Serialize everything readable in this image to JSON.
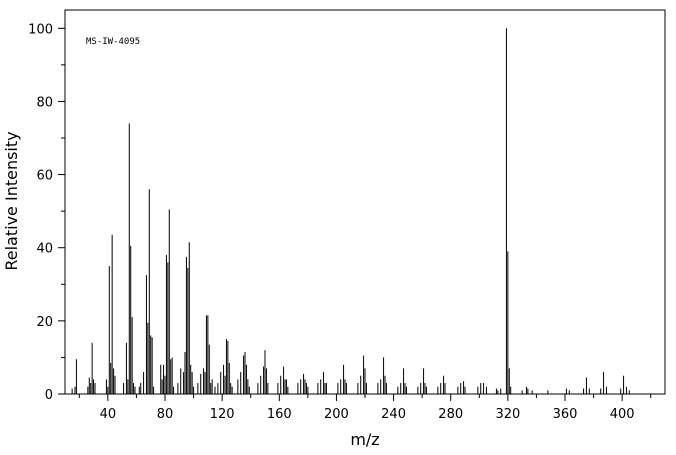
{
  "chart_data": {
    "type": "bar",
    "annotation": "MS-IW-4095",
    "xlabel": "m/z",
    "ylabel": "Relative Intensity",
    "xlim": [
      10,
      430
    ],
    "ylim": [
      0,
      105
    ],
    "x_ticks": [
      40,
      80,
      120,
      160,
      200,
      240,
      280,
      320,
      360,
      400
    ],
    "y_ticks": [
      0,
      20,
      40,
      60,
      80,
      100
    ],
    "series": [
      {
        "peaks": [
          [
            15,
            1.5
          ],
          [
            17,
            2
          ],
          [
            18,
            9.5
          ],
          [
            26,
            2
          ],
          [
            27,
            4.5
          ],
          [
            28,
            3
          ],
          [
            29,
            14
          ],
          [
            30,
            4
          ],
          [
            31,
            3
          ],
          [
            39,
            4
          ],
          [
            40,
            2
          ],
          [
            41,
            35
          ],
          [
            42,
            8.5
          ],
          [
            43,
            43.5
          ],
          [
            44,
            7
          ],
          [
            45,
            5
          ],
          [
            51,
            3
          ],
          [
            53,
            14
          ],
          [
            54,
            4
          ],
          [
            55,
            74
          ],
          [
            56,
            40.5
          ],
          [
            57,
            21
          ],
          [
            58,
            3
          ],
          [
            59,
            2
          ],
          [
            62,
            2
          ],
          [
            63,
            3
          ],
          [
            65,
            6
          ],
          [
            67,
            32.5
          ],
          [
            68,
            19.5
          ],
          [
            69,
            56
          ],
          [
            70,
            16
          ],
          [
            71,
            15.5
          ],
          [
            72,
            2
          ],
          [
            77,
            8
          ],
          [
            78,
            4
          ],
          [
            79,
            8
          ],
          [
            80,
            5
          ],
          [
            81,
            38
          ],
          [
            82,
            36
          ],
          [
            83,
            50.5
          ],
          [
            84,
            9.5
          ],
          [
            85,
            10
          ],
          [
            86,
            2
          ],
          [
            89,
            3
          ],
          [
            91,
            7
          ],
          [
            93,
            6
          ],
          [
            94,
            11.5
          ],
          [
            95,
            37.5
          ],
          [
            96,
            34.5
          ],
          [
            97,
            41.5
          ],
          [
            98,
            8
          ],
          [
            99,
            6
          ],
          [
            100,
            2
          ],
          [
            103,
            3
          ],
          [
            105,
            5.5
          ],
          [
            107,
            7
          ],
          [
            108,
            6
          ],
          [
            109,
            21.5
          ],
          [
            110,
            21.5
          ],
          [
            111,
            13.5
          ],
          [
            112,
            3
          ],
          [
            113,
            4
          ],
          [
            115,
            2
          ],
          [
            117,
            3
          ],
          [
            119,
            6
          ],
          [
            121,
            8
          ],
          [
            122,
            5
          ],
          [
            123,
            15
          ],
          [
            124,
            14.5
          ],
          [
            125,
            8.5
          ],
          [
            126,
            3
          ],
          [
            127,
            2
          ],
          [
            131,
            4
          ],
          [
            133,
            6
          ],
          [
            135,
            10.5
          ],
          [
            136,
            11.5
          ],
          [
            137,
            8
          ],
          [
            138,
            4
          ],
          [
            139,
            2
          ],
          [
            145,
            3
          ],
          [
            147,
            5
          ],
          [
            149,
            7.5
          ],
          [
            150,
            12
          ],
          [
            151,
            7
          ],
          [
            152,
            3
          ],
          [
            159,
            3
          ],
          [
            161,
            5
          ],
          [
            163,
            7.5
          ],
          [
            164,
            4
          ],
          [
            165,
            4
          ],
          [
            166,
            2
          ],
          [
            173,
            3
          ],
          [
            175,
            4
          ],
          [
            177,
            5.5
          ],
          [
            178,
            4
          ],
          [
            179,
            3
          ],
          [
            180,
            2
          ],
          [
            187,
            3
          ],
          [
            189,
            4
          ],
          [
            191,
            6
          ],
          [
            192,
            3
          ],
          [
            193,
            3
          ],
          [
            201,
            3
          ],
          [
            203,
            4
          ],
          [
            205,
            8
          ],
          [
            206,
            4
          ],
          [
            207,
            3
          ],
          [
            215,
            3
          ],
          [
            217,
            5
          ],
          [
            219,
            10.5
          ],
          [
            220,
            7
          ],
          [
            221,
            3
          ],
          [
            229,
            3
          ],
          [
            231,
            4
          ],
          [
            233,
            10
          ],
          [
            234,
            5
          ],
          [
            235,
            3
          ],
          [
            243,
            2
          ],
          [
            245,
            3
          ],
          [
            247,
            7
          ],
          [
            248,
            3
          ],
          [
            249,
            2
          ],
          [
            257,
            2
          ],
          [
            259,
            3
          ],
          [
            261,
            7
          ],
          [
            262,
            3
          ],
          [
            263,
            2
          ],
          [
            271,
            2
          ],
          [
            273,
            3
          ],
          [
            275,
            5
          ],
          [
            276,
            3
          ],
          [
            285,
            2
          ],
          [
            287,
            3
          ],
          [
            289,
            3.5
          ],
          [
            290,
            2
          ],
          [
            299,
            2
          ],
          [
            301,
            3
          ],
          [
            303,
            3
          ],
          [
            305,
            2
          ],
          [
            312,
            1.5
          ],
          [
            313,
            1
          ],
          [
            315,
            1.5
          ],
          [
            319,
            100
          ],
          [
            320,
            39
          ],
          [
            321,
            7
          ],
          [
            322,
            2
          ],
          [
            330,
            1
          ],
          [
            333,
            2
          ],
          [
            334,
            1.5
          ],
          [
            337,
            1
          ],
          [
            348,
            1
          ],
          [
            361,
            1.5
          ],
          [
            363,
            1
          ],
          [
            373,
            1.5
          ],
          [
            375,
            4.5
          ],
          [
            377,
            1.5
          ],
          [
            385,
            1.5
          ],
          [
            387,
            6
          ],
          [
            389,
            2
          ],
          [
            399,
            1.5
          ],
          [
            401,
            5
          ],
          [
            403,
            2
          ],
          [
            405,
            1
          ]
        ]
      }
    ]
  }
}
